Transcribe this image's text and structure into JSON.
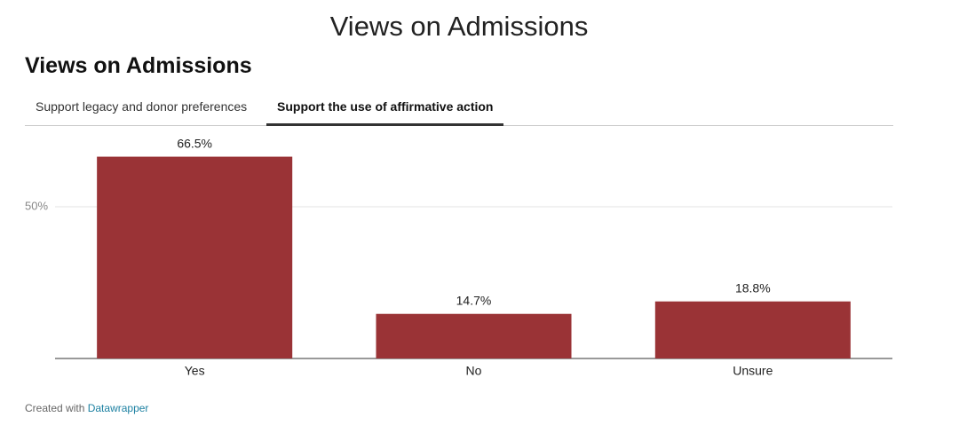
{
  "page_title": "Views on Admissions",
  "chart_data": {
    "type": "bar",
    "title": "Views on Admissions",
    "tabs": [
      "Support legacy and donor preferences",
      "Support the use of affirmative action"
    ],
    "categories": [
      "Yes",
      "No",
      "Unsure"
    ],
    "values": [
      66.5,
      14.7,
      18.8
    ],
    "value_labels": [
      "66.5%",
      "14.7%",
      "18.8%"
    ],
    "color": "#9a3336",
    "ylim": [
      0,
      75
    ],
    "yticks": [
      {
        "value": 50,
        "label": "50%"
      }
    ],
    "grid": true
  },
  "footer": {
    "text": "Created with",
    "link": "Datawrapper"
  }
}
